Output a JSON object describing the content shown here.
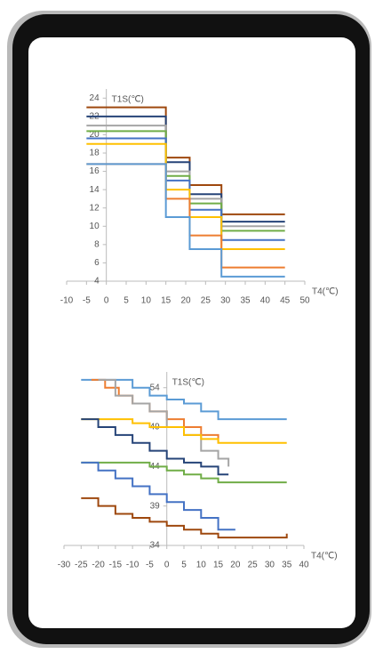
{
  "chart_data": [
    {
      "type": "line",
      "step": true,
      "y_label": "T1S(℃)",
      "x_label": "T4(℃)",
      "xlim": [
        -10,
        50
      ],
      "xticks": [
        -10,
        -5,
        0,
        5,
        10,
        15,
        20,
        25,
        30,
        35,
        40,
        45,
        50
      ],
      "ylim": [
        4,
        25
      ],
      "yticks": [
        4,
        6,
        8,
        10,
        12,
        14,
        16,
        18,
        20,
        22,
        24
      ],
      "series": [
        {
          "color": "#9e480e",
          "x": [
            -5,
            15,
            21,
            29,
            45
          ],
          "values": [
            23,
            17.5,
            14.5,
            11.3,
            11.3
          ]
        },
        {
          "color": "#264478",
          "x": [
            -5,
            15,
            21,
            29,
            45
          ],
          "values": [
            22,
            17,
            13.5,
            10.5,
            10.5
          ]
        },
        {
          "color": "#a5a5a5",
          "x": [
            -5,
            15,
            21,
            29,
            45
          ],
          "values": [
            21,
            16,
            13,
            10,
            10
          ]
        },
        {
          "color": "#70ad47",
          "x": [
            -5,
            15,
            21,
            29,
            45
          ],
          "values": [
            20.4,
            15.5,
            12.5,
            9.5,
            9.5
          ]
        },
        {
          "color": "#4472c4",
          "x": [
            -5,
            15,
            21,
            29,
            45
          ],
          "values": [
            19.6,
            15,
            11.8,
            8.5,
            8.5
          ]
        },
        {
          "color": "#ffc000",
          "x": [
            -5,
            15,
            21,
            29,
            45
          ],
          "values": [
            19,
            14,
            11,
            7.5,
            7.5
          ]
        },
        {
          "color": "#ed7d31",
          "x": [
            -5,
            15,
            21,
            29,
            45
          ],
          "values": [
            16.8,
            13,
            9,
            5.5,
            5.5
          ]
        },
        {
          "color": "#5b9bd5",
          "x": [
            -5,
            15,
            21,
            29,
            45
          ],
          "values": [
            16.8,
            11,
            7.5,
            4.5,
            4.5
          ]
        }
      ]
    },
    {
      "type": "line",
      "step": true,
      "y_label": "T1S(℃)",
      "x_label": "T4(℃)",
      "xlim": [
        -30,
        40
      ],
      "xticks": [
        -30,
        -25,
        -20,
        -15,
        -10,
        -5,
        0,
        5,
        10,
        15,
        20,
        25,
        30,
        35,
        40
      ],
      "ylim": [
        34,
        56
      ],
      "yticks": [
        34,
        39,
        44,
        49,
        54
      ],
      "series": [
        {
          "color": "#5b9bd5",
          "x": [
            -25,
            -10,
            -5,
            0,
            5,
            10,
            15,
            35
          ],
          "values": [
            55,
            54,
            53,
            52.5,
            52,
            51,
            50,
            50
          ]
        },
        {
          "color": "#ed7d31",
          "x": [
            -22,
            -18,
            -14,
            -10,
            -5,
            0,
            5,
            10,
            15
          ],
          "values": [
            55,
            54,
            53,
            52,
            51,
            50,
            49,
            48,
            47
          ]
        },
        {
          "color": "#a5a5a5",
          "x": [
            -20,
            -15,
            -10,
            -5,
            0,
            5,
            10,
            15,
            18
          ],
          "values": [
            55,
            53,
            52,
            51,
            49,
            48,
            46,
            45,
            44
          ]
        },
        {
          "color": "#ffc000",
          "x": [
            -25,
            -15,
            -10,
            -5,
            5,
            10,
            15,
            35
          ],
          "values": [
            50,
            50,
            49.5,
            49,
            48,
            47.5,
            47,
            47
          ]
        },
        {
          "color": "#264478",
          "x": [
            -25,
            -20,
            -15,
            -10,
            -5,
            0,
            5,
            10,
            15,
            18
          ],
          "values": [
            50,
            49,
            48,
            47,
            46,
            45,
            44.5,
            44,
            43,
            43
          ]
        },
        {
          "color": "#70ad47",
          "x": [
            -25,
            -10,
            -5,
            0,
            5,
            10,
            15,
            35
          ],
          "values": [
            44.5,
            44.5,
            44,
            43.5,
            43,
            42.5,
            42,
            42
          ]
        },
        {
          "color": "#4472c4",
          "x": [
            -25,
            -20,
            -15,
            -10,
            -5,
            0,
            5,
            10,
            15,
            20
          ],
          "values": [
            44.5,
            43.5,
            42.5,
            41.5,
            40.5,
            39.5,
            38.5,
            37.5,
            36,
            36
          ]
        },
        {
          "color": "#9e480e",
          "x": [
            -25,
            -20,
            -15,
            -10,
            -5,
            0,
            5,
            10,
            15,
            35
          ],
          "values": [
            40,
            39,
            38,
            37.5,
            37,
            36.5,
            36,
            35.5,
            35,
            35.5
          ]
        }
      ]
    }
  ]
}
